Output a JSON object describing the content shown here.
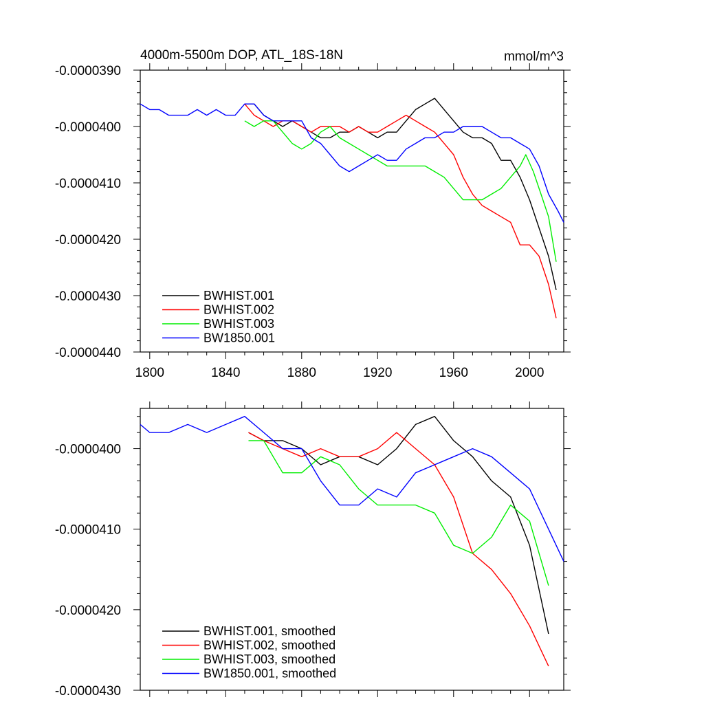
{
  "chart_data": [
    {
      "type": "line",
      "title": "4000m-5500m DOP, ATL_18S-18N",
      "units_label": "mmol/m^3",
      "xlabel": "",
      "ylabel": "",
      "xlim": [
        1795,
        2018
      ],
      "ylim": [
        -4.4e-05,
        -3.9e-05
      ],
      "xticks": [
        1800,
        1840,
        1880,
        1920,
        1960,
        2000
      ],
      "yticks": [
        -3.9e-05,
        -4e-05,
        -4.1e-05,
        -4.2e-05,
        -4.3e-05,
        -4.4e-05
      ],
      "ytick_labels": [
        "-0.0000390",
        "-0.0000400",
        "-0.0000410",
        "-0.0000420",
        "-0.0000430",
        "-0.0000440"
      ],
      "legend_position": "bottom-left",
      "grid": false,
      "series": [
        {
          "name": "BWHIST.001",
          "color": "#000000",
          "points": [
            [
              1850,
              -3.96e-05
            ],
            [
              1855,
              -3.96e-05
            ],
            [
              1860,
              -3.98e-05
            ],
            [
              1865,
              -3.99e-05
            ],
            [
              1870,
              -4e-05
            ],
            [
              1875,
              -3.99e-05
            ],
            [
              1880,
              -4e-05
            ],
            [
              1885,
              -4.01e-05
            ],
            [
              1890,
              -4.02e-05
            ],
            [
              1895,
              -4.02e-05
            ],
            [
              1900,
              -4.01e-05
            ],
            [
              1905,
              -4.01e-05
            ],
            [
              1910,
              -4e-05
            ],
            [
              1915,
              -4.01e-05
            ],
            [
              1920,
              -4.02e-05
            ],
            [
              1925,
              -4.01e-05
            ],
            [
              1930,
              -4.01e-05
            ],
            [
              1935,
              -3.99e-05
            ],
            [
              1940,
              -3.97e-05
            ],
            [
              1945,
              -3.96e-05
            ],
            [
              1950,
              -3.95e-05
            ],
            [
              1955,
              -3.97e-05
            ],
            [
              1960,
              -3.99e-05
            ],
            [
              1965,
              -4.01e-05
            ],
            [
              1970,
              -4.02e-05
            ],
            [
              1975,
              -4.02e-05
            ],
            [
              1980,
              -4.03e-05
            ],
            [
              1985,
              -4.06e-05
            ],
            [
              1990,
              -4.06e-05
            ],
            [
              1995,
              -4.09e-05
            ],
            [
              2000,
              -4.13e-05
            ],
            [
              2005,
              -4.18e-05
            ],
            [
              2010,
              -4.23e-05
            ],
            [
              2014,
              -4.29e-05
            ]
          ]
        },
        {
          "name": "BWHIST.002",
          "color": "#ff0000",
          "points": [
            [
              1850,
              -3.96e-05
            ],
            [
              1855,
              -3.98e-05
            ],
            [
              1860,
              -3.99e-05
            ],
            [
              1865,
              -4e-05
            ],
            [
              1870,
              -3.99e-05
            ],
            [
              1875,
              -3.99e-05
            ],
            [
              1880,
              -4e-05
            ],
            [
              1885,
              -4.01e-05
            ],
            [
              1890,
              -4e-05
            ],
            [
              1895,
              -4e-05
            ],
            [
              1900,
              -4e-05
            ],
            [
              1905,
              -4.01e-05
            ],
            [
              1910,
              -4e-05
            ],
            [
              1915,
              -4.01e-05
            ],
            [
              1920,
              -4.01e-05
            ],
            [
              1925,
              -4e-05
            ],
            [
              1930,
              -3.99e-05
            ],
            [
              1935,
              -3.98e-05
            ],
            [
              1940,
              -3.99e-05
            ],
            [
              1945,
              -4e-05
            ],
            [
              1950,
              -4.01e-05
            ],
            [
              1955,
              -4.03e-05
            ],
            [
              1960,
              -4.05e-05
            ],
            [
              1965,
              -4.09e-05
            ],
            [
              1970,
              -4.12e-05
            ],
            [
              1975,
              -4.14e-05
            ],
            [
              1980,
              -4.15e-05
            ],
            [
              1985,
              -4.16e-05
            ],
            [
              1990,
              -4.17e-05
            ],
            [
              1995,
              -4.21e-05
            ],
            [
              2000,
              -4.21e-05
            ],
            [
              2005,
              -4.23e-05
            ],
            [
              2010,
              -4.28e-05
            ],
            [
              2014,
              -4.34e-05
            ]
          ]
        },
        {
          "name": "BWHIST.003",
          "color": "#00ee00",
          "points": [
            [
              1850,
              -3.99e-05
            ],
            [
              1855,
              -4e-05
            ],
            [
              1860,
              -3.99e-05
            ],
            [
              1865,
              -3.99e-05
            ],
            [
              1870,
              -4.01e-05
            ],
            [
              1875,
              -4.03e-05
            ],
            [
              1880,
              -4.04e-05
            ],
            [
              1885,
              -4.03e-05
            ],
            [
              1890,
              -4.01e-05
            ],
            [
              1895,
              -4e-05
            ],
            [
              1900,
              -4.02e-05
            ],
            [
              1905,
              -4.03e-05
            ],
            [
              1910,
              -4.04e-05
            ],
            [
              1915,
              -4.05e-05
            ],
            [
              1920,
              -4.06e-05
            ],
            [
              1925,
              -4.07e-05
            ],
            [
              1930,
              -4.07e-05
            ],
            [
              1935,
              -4.07e-05
            ],
            [
              1940,
              -4.07e-05
            ],
            [
              1945,
              -4.07e-05
            ],
            [
              1950,
              -4.08e-05
            ],
            [
              1955,
              -4.09e-05
            ],
            [
              1960,
              -4.11e-05
            ],
            [
              1965,
              -4.13e-05
            ],
            [
              1970,
              -4.13e-05
            ],
            [
              1975,
              -4.13e-05
            ],
            [
              1980,
              -4.12e-05
            ],
            [
              1985,
              -4.11e-05
            ],
            [
              1990,
              -4.09e-05
            ],
            [
              1995,
              -4.07e-05
            ],
            [
              1998,
              -4.05e-05
            ],
            [
              2002,
              -4.08e-05
            ],
            [
              2006,
              -4.12e-05
            ],
            [
              2010,
              -4.16e-05
            ],
            [
              2014,
              -4.24e-05
            ]
          ]
        },
        {
          "name": "BW1850.001",
          "color": "#0000ff",
          "points": [
            [
              1795,
              -3.96e-05
            ],
            [
              1800,
              -3.97e-05
            ],
            [
              1805,
              -3.97e-05
            ],
            [
              1810,
              -3.98e-05
            ],
            [
              1815,
              -3.98e-05
            ],
            [
              1820,
              -3.98e-05
            ],
            [
              1825,
              -3.97e-05
            ],
            [
              1830,
              -3.98e-05
            ],
            [
              1835,
              -3.97e-05
            ],
            [
              1840,
              -3.98e-05
            ],
            [
              1845,
              -3.98e-05
            ],
            [
              1850,
              -3.96e-05
            ],
            [
              1855,
              -3.96e-05
            ],
            [
              1860,
              -3.98e-05
            ],
            [
              1865,
              -3.99e-05
            ],
            [
              1870,
              -3.99e-05
            ],
            [
              1875,
              -3.99e-05
            ],
            [
              1880,
              -3.99e-05
            ],
            [
              1885,
              -4.02e-05
            ],
            [
              1890,
              -4.03e-05
            ],
            [
              1895,
              -4.05e-05
            ],
            [
              1900,
              -4.07e-05
            ],
            [
              1905,
              -4.08e-05
            ],
            [
              1910,
              -4.07e-05
            ],
            [
              1915,
              -4.06e-05
            ],
            [
              1920,
              -4.05e-05
            ],
            [
              1925,
              -4.06e-05
            ],
            [
              1930,
              -4.06e-05
            ],
            [
              1935,
              -4.04e-05
            ],
            [
              1940,
              -4.03e-05
            ],
            [
              1945,
              -4.02e-05
            ],
            [
              1950,
              -4.02e-05
            ],
            [
              1955,
              -4.01e-05
            ],
            [
              1960,
              -4.01e-05
            ],
            [
              1965,
              -4e-05
            ],
            [
              1970,
              -4e-05
            ],
            [
              1975,
              -4e-05
            ],
            [
              1980,
              -4.01e-05
            ],
            [
              1985,
              -4.02e-05
            ],
            [
              1990,
              -4.02e-05
            ],
            [
              1995,
              -4.03e-05
            ],
            [
              2000,
              -4.04e-05
            ],
            [
              2005,
              -4.07e-05
            ],
            [
              2010,
              -4.12e-05
            ],
            [
              2015,
              -4.15e-05
            ],
            [
              2018,
              -4.17e-05
            ]
          ]
        }
      ]
    },
    {
      "type": "line",
      "title": "",
      "xlabel": "",
      "ylabel": "",
      "xlim": [
        1795,
        2018
      ],
      "ylim": [
        -4.3e-05,
        -3.95e-05
      ],
      "xticks": [
        1800,
        1840,
        1880,
        1920,
        1960,
        2000
      ],
      "yticks": [
        -4e-05,
        -4.1e-05,
        -4.2e-05,
        -4.3e-05
      ],
      "ytick_labels": [
        "-0.0000400",
        "-0.0000410",
        "-0.0000420",
        "-0.0000430"
      ],
      "legend_position": "bottom-left",
      "grid": false,
      "series": [
        {
          "name": "BWHIST.001, smoothed",
          "color": "#000000",
          "points": [
            [
              1852,
              -3.98e-05
            ],
            [
              1860,
              -3.99e-05
            ],
            [
              1870,
              -3.99e-05
            ],
            [
              1880,
              -4e-05
            ],
            [
              1890,
              -4.02e-05
            ],
            [
              1900,
              -4.01e-05
            ],
            [
              1910,
              -4.01e-05
            ],
            [
              1920,
              -4.02e-05
            ],
            [
              1930,
              -4e-05
            ],
            [
              1940,
              -3.97e-05
            ],
            [
              1950,
              -3.96e-05
            ],
            [
              1960,
              -3.99e-05
            ],
            [
              1970,
              -4.01e-05
            ],
            [
              1980,
              -4.04e-05
            ],
            [
              1990,
              -4.06e-05
            ],
            [
              2000,
              -4.12e-05
            ],
            [
              2010,
              -4.23e-05
            ]
          ]
        },
        {
          "name": "BWHIST.002, smoothed",
          "color": "#ff0000",
          "points": [
            [
              1852,
              -3.98e-05
            ],
            [
              1860,
              -3.99e-05
            ],
            [
              1870,
              -4e-05
            ],
            [
              1880,
              -4.01e-05
            ],
            [
              1890,
              -4e-05
            ],
            [
              1900,
              -4.01e-05
            ],
            [
              1910,
              -4.01e-05
            ],
            [
              1920,
              -4e-05
            ],
            [
              1930,
              -3.98e-05
            ],
            [
              1940,
              -4e-05
            ],
            [
              1950,
              -4.02e-05
            ],
            [
              1960,
              -4.06e-05
            ],
            [
              1970,
              -4.13e-05
            ],
            [
              1980,
              -4.15e-05
            ],
            [
              1990,
              -4.18e-05
            ],
            [
              2000,
              -4.22e-05
            ],
            [
              2010,
              -4.27e-05
            ]
          ]
        },
        {
          "name": "BWHIST.003, smoothed",
          "color": "#00ee00",
          "points": [
            [
              1852,
              -3.99e-05
            ],
            [
              1860,
              -3.99e-05
            ],
            [
              1870,
              -4.03e-05
            ],
            [
              1880,
              -4.03e-05
            ],
            [
              1890,
              -4.01e-05
            ],
            [
              1900,
              -4.02e-05
            ],
            [
              1910,
              -4.05e-05
            ],
            [
              1920,
              -4.07e-05
            ],
            [
              1930,
              -4.07e-05
            ],
            [
              1940,
              -4.07e-05
            ],
            [
              1950,
              -4.08e-05
            ],
            [
              1960,
              -4.12e-05
            ],
            [
              1970,
              -4.13e-05
            ],
            [
              1980,
              -4.11e-05
            ],
            [
              1990,
              -4.07e-05
            ],
            [
              2000,
              -4.09e-05
            ],
            [
              2010,
              -4.17e-05
            ]
          ]
        },
        {
          "name": "BW1850.001, smoothed",
          "color": "#0000ff",
          "points": [
            [
              1795,
              -3.97e-05
            ],
            [
              1800,
              -3.98e-05
            ],
            [
              1810,
              -3.98e-05
            ],
            [
              1820,
              -3.97e-05
            ],
            [
              1830,
              -3.98e-05
            ],
            [
              1840,
              -3.97e-05
            ],
            [
              1850,
              -3.96e-05
            ],
            [
              1860,
              -3.98e-05
            ],
            [
              1870,
              -4e-05
            ],
            [
              1880,
              -4e-05
            ],
            [
              1890,
              -4.04e-05
            ],
            [
              1900,
              -4.07e-05
            ],
            [
              1910,
              -4.07e-05
            ],
            [
              1920,
              -4.05e-05
            ],
            [
              1930,
              -4.06e-05
            ],
            [
              1940,
              -4.03e-05
            ],
            [
              1950,
              -4.02e-05
            ],
            [
              1960,
              -4.01e-05
            ],
            [
              1970,
              -4e-05
            ],
            [
              1980,
              -4.01e-05
            ],
            [
              1990,
              -4.03e-05
            ],
            [
              2000,
              -4.05e-05
            ],
            [
              2010,
              -4.1e-05
            ],
            [
              2018,
              -4.14e-05
            ]
          ]
        }
      ]
    }
  ]
}
